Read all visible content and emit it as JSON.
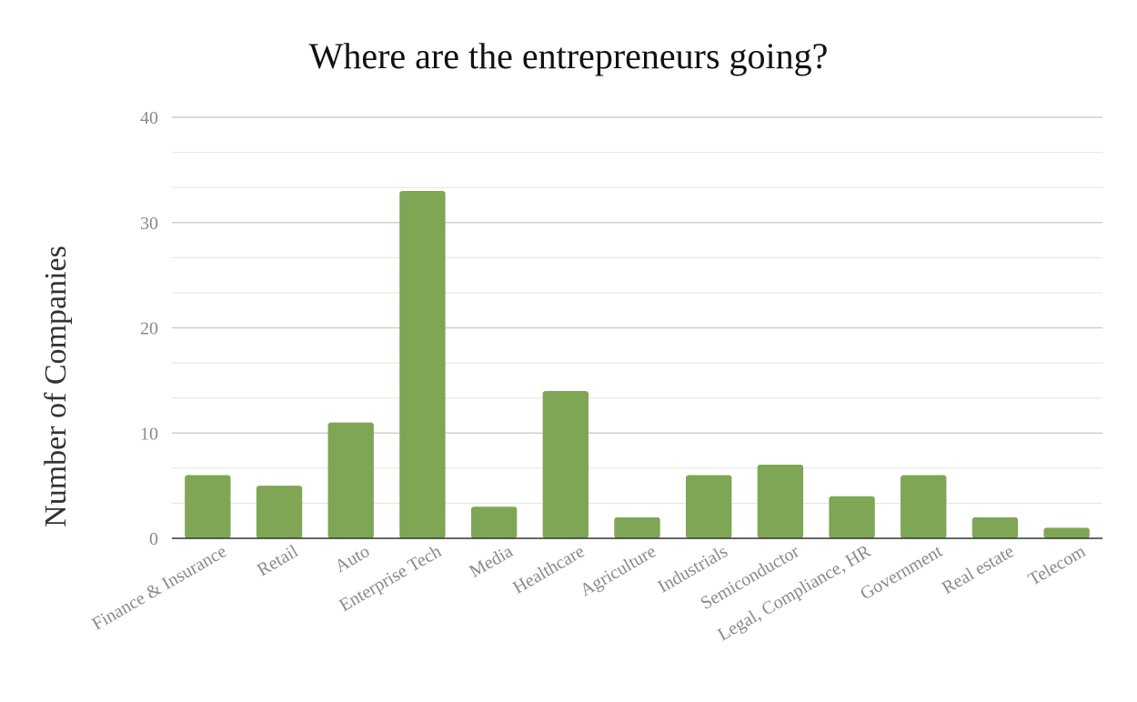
{
  "chart_data": {
    "type": "bar",
    "title": "Where are the entrepreneurs going?",
    "ylabel": "Number of Companies",
    "xlabel": "",
    "ylim": [
      0,
      40
    ],
    "yticks": [
      0,
      10,
      20,
      30,
      40
    ],
    "grid": true,
    "bar_color": "#7fa654",
    "categories": [
      "Finance & Insurance",
      "Retail",
      "Auto",
      "Enterprise Tech",
      "Media",
      "Healthcare",
      "Agriculture",
      "Industrials",
      "Semiconductor",
      "Legal, Compliance, HR",
      "Government",
      "Real estate",
      "Telecom"
    ],
    "values": [
      6,
      5,
      11,
      33,
      3,
      14,
      2,
      6,
      7,
      4,
      6,
      2,
      1
    ]
  }
}
